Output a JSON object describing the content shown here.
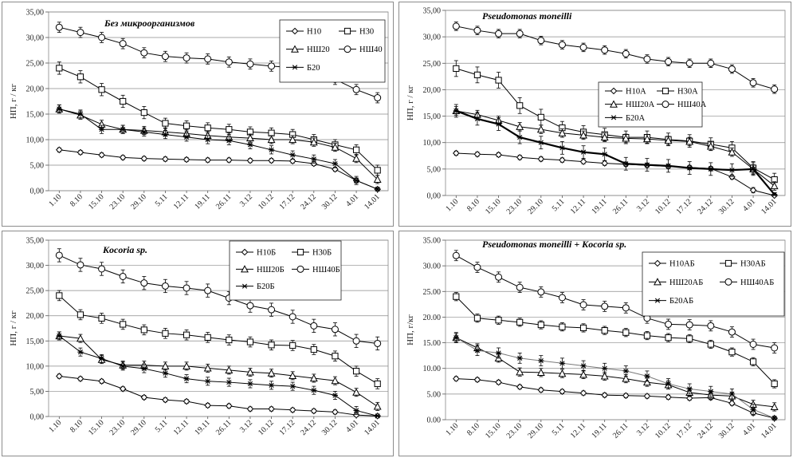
{
  "chart_data": [
    {
      "type": "line",
      "title": "Без микроорганизмов",
      "xlabel": "",
      "ylabel": "НП, г / кг",
      "ylim": [
        0,
        35
      ],
      "yticks": [
        "0,00",
        "5,00",
        "10,00",
        "15,00",
        "20,00",
        "25,00",
        "30,00",
        "35,00"
      ],
      "categories": [
        "1.10",
        "8.10",
        "15.10",
        "23.10",
        "29.10",
        "5.11",
        "12.11",
        "19.11",
        "26.11",
        "3.12",
        "10.12",
        "17.12",
        "24.12",
        "30.12",
        "4.01",
        "14.01"
      ],
      "legend": "top-right",
      "series": [
        {
          "name": "Н10",
          "marker": "diamond",
          "values": [
            8.0,
            7.5,
            7.0,
            6.5,
            6.3,
            6.2,
            6.1,
            6.0,
            6.0,
            5.9,
            5.9,
            5.8,
            5.3,
            4.2,
            2.0,
            0.3
          ],
          "errors": [
            0.4,
            0.4,
            0.4,
            0.4,
            0.4,
            0.4,
            0.4,
            0.4,
            0.4,
            0.4,
            0.4,
            0.4,
            0.4,
            0.4,
            0.5,
            0.3
          ]
        },
        {
          "name": "Н30",
          "marker": "square",
          "values": [
            24.0,
            22.3,
            19.8,
            17.5,
            15.3,
            13.2,
            12.7,
            12.3,
            12.0,
            11.5,
            11.3,
            11.0,
            10.0,
            9.0,
            8.0,
            4.0
          ],
          "errors": [
            1.2,
            1.2,
            1.2,
            1.2,
            1.2,
            1.0,
            1.0,
            1.0,
            1.0,
            1.0,
            1.0,
            1.0,
            1.0,
            1.0,
            1.0,
            1.0
          ]
        },
        {
          "name": "НШ20",
          "marker": "triangle",
          "values": [
            16.0,
            14.8,
            13.0,
            12.0,
            11.8,
            11.5,
            11.2,
            10.8,
            10.5,
            10.3,
            10.0,
            10.0,
            9.5,
            8.5,
            6.3,
            2.2
          ],
          "errors": [
            0.8,
            0.8,
            0.8,
            0.8,
            0.8,
            0.8,
            0.8,
            0.8,
            0.8,
            0.8,
            0.8,
            0.8,
            0.8,
            0.8,
            0.8,
            0.8
          ]
        },
        {
          "name": "НШ40",
          "marker": "circle",
          "values": [
            32.0,
            31.0,
            30.0,
            28.8,
            27.0,
            26.3,
            26.0,
            25.8,
            25.2,
            24.8,
            24.4,
            24.1,
            23.5,
            21.8,
            19.8,
            18.2
          ],
          "errors": [
            1.0,
            1.0,
            1.0,
            1.0,
            1.0,
            1.0,
            1.0,
            1.0,
            1.0,
            1.0,
            1.0,
            1.0,
            1.0,
            1.0,
            1.0,
            1.0
          ]
        },
        {
          "name": "Б20",
          "marker": "star",
          "values": [
            16.0,
            15.0,
            12.0,
            12.0,
            11.5,
            11.0,
            10.5,
            10.0,
            9.8,
            9.0,
            8.0,
            7.0,
            6.2,
            5.3,
            2.0,
            0.3
          ],
          "errors": [
            0.8,
            0.8,
            0.8,
            0.8,
            0.8,
            0.8,
            0.8,
            0.8,
            0.8,
            0.8,
            0.8,
            0.8,
            0.8,
            0.8,
            0.8,
            0.3
          ]
        }
      ]
    },
    {
      "type": "line",
      "title": "Pseudomonas moneilli",
      "xlabel": "",
      "ylabel": "НП, г / кг",
      "ylim": [
        0,
        35
      ],
      "yticks": [
        "0,00",
        "5,00",
        "10,00",
        "15,00",
        "20,00",
        "25,00",
        "30,00",
        "35,00"
      ],
      "categories": [
        "1.10",
        "8.10",
        "15.10",
        "23.10",
        "29.10",
        "5.11",
        "12.11",
        "19.11",
        "26.11",
        "3.12",
        "10.12",
        "17.12",
        "24.12",
        "30.12",
        "4.01",
        "14.01"
      ],
      "legend": "center-right",
      "series": [
        {
          "name": "Н10А",
          "marker": "diamond",
          "values": [
            8.0,
            7.8,
            7.7,
            7.2,
            6.9,
            6.7,
            6.4,
            6.1,
            5.9,
            5.7,
            5.5,
            5.3,
            5.1,
            3.5,
            1.0,
            0.0
          ],
          "errors": [
            0.4,
            0.4,
            0.4,
            0.4,
            0.4,
            0.4,
            0.4,
            0.4,
            0.4,
            0.4,
            0.4,
            0.4,
            0.4,
            0.4,
            0.5,
            0.3
          ]
        },
        {
          "name": "Н30А",
          "marker": "square",
          "values": [
            24.0,
            22.8,
            21.8,
            17.0,
            14.8,
            12.8,
            12.0,
            11.5,
            11.0,
            11.0,
            10.6,
            10.3,
            9.7,
            9.0,
            5.2,
            3.0
          ],
          "errors": [
            1.5,
            1.5,
            1.5,
            1.5,
            1.5,
            1.2,
            1.2,
            1.2,
            1.2,
            1.2,
            1.2,
            1.2,
            1.2,
            1.2,
            1.2,
            1.2
          ]
        },
        {
          "name": "НШ20А",
          "marker": "triangle",
          "values": [
            16.0,
            15.3,
            14.2,
            13.0,
            12.5,
            11.8,
            11.4,
            11.0,
            10.8,
            10.7,
            10.4,
            10.2,
            9.3,
            8.2,
            5.0,
            1.8
          ],
          "errors": [
            0.8,
            0.8,
            0.8,
            0.8,
            0.8,
            0.8,
            0.8,
            0.8,
            0.8,
            0.8,
            0.8,
            0.8,
            0.8,
            0.8,
            0.8,
            0.8
          ]
        },
        {
          "name": "НШ40А",
          "marker": "circle",
          "values": [
            32.0,
            31.2,
            30.6,
            30.6,
            29.3,
            28.5,
            28.0,
            27.5,
            26.8,
            25.8,
            25.3,
            25.0,
            25.0,
            23.9,
            21.3,
            20.1
          ],
          "errors": [
            0.8,
            0.8,
            0.8,
            0.8,
            0.8,
            0.8,
            0.8,
            0.8,
            0.8,
            0.8,
            0.8,
            0.8,
            0.8,
            0.8,
            0.8,
            0.8
          ]
        },
        {
          "name": "Б20А",
          "marker": "star",
          "values": [
            16.0,
            14.5,
            13.5,
            11.0,
            10.0,
            9.0,
            8.2,
            7.8,
            6.0,
            5.8,
            5.6,
            5.2,
            5.0,
            4.8,
            5.0,
            0.2
          ],
          "errors": [
            1.2,
            1.2,
            1.2,
            1.2,
            1.2,
            1.2,
            1.2,
            1.2,
            1.2,
            1.2,
            1.2,
            1.2,
            1.2,
            1.2,
            1.2,
            0.3
          ]
        }
      ]
    },
    {
      "type": "line",
      "title": "Kocoria sp.",
      "xlabel": "",
      "ylabel": "НП, г / кг",
      "ylim": [
        0,
        35
      ],
      "yticks": [
        "0,00",
        "5,00",
        "10,00",
        "15,00",
        "20,00",
        "25,00",
        "30,00",
        "35,00"
      ],
      "categories": [
        "1.10",
        "8.10",
        "15.10",
        "23.10",
        "29.10",
        "5.11",
        "12.11",
        "19.11",
        "26.11",
        "3.12",
        "10.12",
        "17.12",
        "24.12",
        "30.12",
        "4.01",
        "14.01"
      ],
      "legend": "top-right",
      "series": [
        {
          "name": "Н10Б",
          "marker": "diamond",
          "values": [
            8.0,
            7.5,
            7.0,
            5.5,
            3.8,
            3.3,
            3.0,
            2.2,
            2.1,
            1.5,
            1.5,
            1.3,
            1.1,
            0.9,
            0.3,
            0.1
          ],
          "errors": [
            0.4,
            0.4,
            0.4,
            0.4,
            0.4,
            0.4,
            0.4,
            0.4,
            0.4,
            0.4,
            0.4,
            0.4,
            0.4,
            0.4,
            0.4,
            0.2
          ]
        },
        {
          "name": "Н30Б",
          "marker": "square",
          "values": [
            24.0,
            20.2,
            19.5,
            18.3,
            17.2,
            16.5,
            16.2,
            15.7,
            15.2,
            14.8,
            14.2,
            14.1,
            13.3,
            12.0,
            9.0,
            6.5
          ],
          "errors": [
            1.0,
            1.0,
            1.0,
            1.0,
            1.0,
            1.0,
            1.0,
            1.0,
            1.0,
            1.0,
            1.0,
            1.0,
            1.0,
            1.0,
            1.0,
            1.0
          ]
        },
        {
          "name": "НШ20Б",
          "marker": "triangle",
          "values": [
            16.0,
            15.5,
            11.3,
            10.2,
            10.2,
            10.0,
            10.0,
            9.6,
            9.2,
            8.8,
            8.6,
            8.1,
            7.6,
            7.1,
            4.8,
            2.0
          ],
          "errors": [
            0.8,
            0.8,
            0.8,
            0.8,
            0.8,
            0.8,
            0.8,
            0.8,
            0.8,
            0.8,
            0.8,
            0.8,
            0.8,
            0.8,
            0.8,
            0.8
          ]
        },
        {
          "name": "НШ40Б",
          "marker": "circle",
          "values": [
            32.0,
            30.1,
            29.3,
            27.8,
            26.5,
            25.9,
            25.5,
            25.0,
            23.5,
            22.0,
            21.2,
            19.8,
            18.0,
            17.3,
            15.0,
            14.5
          ],
          "errors": [
            1.3,
            1.3,
            1.3,
            1.3,
            1.3,
            1.3,
            1.3,
            1.3,
            1.3,
            1.3,
            1.3,
            1.3,
            1.3,
            1.3,
            1.3,
            1.3
          ]
        },
        {
          "name": "Б20Б",
          "marker": "star",
          "values": [
            16.0,
            12.8,
            11.5,
            10.0,
            9.5,
            8.6,
            7.5,
            7.0,
            6.8,
            6.5,
            6.2,
            6.0,
            5.2,
            4.2,
            1.2,
            0.1
          ],
          "errors": [
            0.8,
            0.8,
            0.8,
            0.8,
            0.8,
            0.8,
            0.8,
            0.8,
            0.8,
            0.8,
            0.8,
            0.8,
            0.8,
            0.8,
            0.8,
            0.2
          ]
        }
      ]
    },
    {
      "type": "line",
      "title": "Pseudomonas moneilli + Kocoria sp.",
      "xlabel": "",
      "ylabel": "НП, г/кг",
      "ylim": [
        0,
        35
      ],
      "yticks": [
        "0.00",
        "5.00",
        "10.00",
        "15.00",
        "20.00",
        "25.00",
        "30.00",
        "35.00"
      ],
      "categories": [
        "1.10",
        "8.10",
        "15.10",
        "23.10",
        "29.10",
        "5.11",
        "12.11",
        "19.11",
        "26.11",
        "3.12",
        "10.12",
        "17.12",
        "24.12",
        "30.12",
        "4.01",
        "14.01"
      ],
      "legend": "top-right",
      "series": [
        {
          "name": "Н10АБ",
          "marker": "diamond",
          "values": [
            8.0,
            7.8,
            7.3,
            6.4,
            5.8,
            5.5,
            5.2,
            4.8,
            4.7,
            4.6,
            4.4,
            4.2,
            4.3,
            3.2,
            1.3,
            0.3
          ],
          "errors": [
            0.4,
            0.4,
            0.4,
            0.4,
            0.4,
            0.4,
            0.4,
            0.4,
            0.4,
            0.4,
            0.4,
            0.4,
            0.4,
            0.4,
            0.4,
            0.3
          ]
        },
        {
          "name": "Н30АБ",
          "marker": "square",
          "values": [
            24.0,
            19.8,
            19.4,
            19.0,
            18.5,
            18.1,
            17.9,
            17.4,
            17.0,
            16.4,
            16.0,
            15.8,
            14.7,
            13.2,
            11.3,
            7.0
          ],
          "errors": [
            0.8,
            0.8,
            0.8,
            0.8,
            0.8,
            0.8,
            0.8,
            0.8,
            0.8,
            0.8,
            0.8,
            0.8,
            0.8,
            0.8,
            0.8,
            0.8
          ]
        },
        {
          "name": "НШ20АБ",
          "marker": "triangle",
          "values": [
            16.0,
            14.0,
            12.0,
            9.3,
            9.2,
            9.0,
            8.8,
            8.5,
            8.0,
            7.3,
            6.8,
            5.3,
            4.8,
            4.6,
            3.0,
            2.5
          ],
          "errors": [
            0.8,
            0.8,
            0.8,
            0.8,
            0.8,
            0.8,
            0.8,
            0.8,
            0.8,
            0.8,
            0.8,
            0.8,
            0.8,
            0.8,
            0.8,
            0.8
          ]
        },
        {
          "name": "НШ40АБ",
          "marker": "circle",
          "values": [
            32.0,
            29.7,
            27.8,
            25.8,
            24.9,
            23.8,
            22.4,
            22.1,
            21.8,
            19.8,
            18.6,
            18.5,
            18.3,
            17.1,
            14.7,
            14.0
          ],
          "errors": [
            1.0,
            1.0,
            1.0,
            1.0,
            1.0,
            1.0,
            1.0,
            1.0,
            1.0,
            1.0,
            1.0,
            1.0,
            1.0,
            1.0,
            1.0,
            1.0
          ]
        },
        {
          "name": "Б20АБ",
          "marker": "star",
          "values": [
            16.0,
            13.5,
            13.0,
            12.0,
            11.5,
            11.0,
            10.5,
            10.0,
            9.5,
            8.5,
            7.0,
            6.0,
            5.5,
            5.0,
            2.0,
            0.3
          ],
          "errors": [
            1.0,
            1.0,
            1.0,
            1.0,
            1.0,
            1.0,
            1.0,
            1.0,
            1.0,
            1.0,
            1.0,
            1.0,
            1.0,
            1.0,
            1.0,
            0.3
          ]
        }
      ]
    }
  ]
}
